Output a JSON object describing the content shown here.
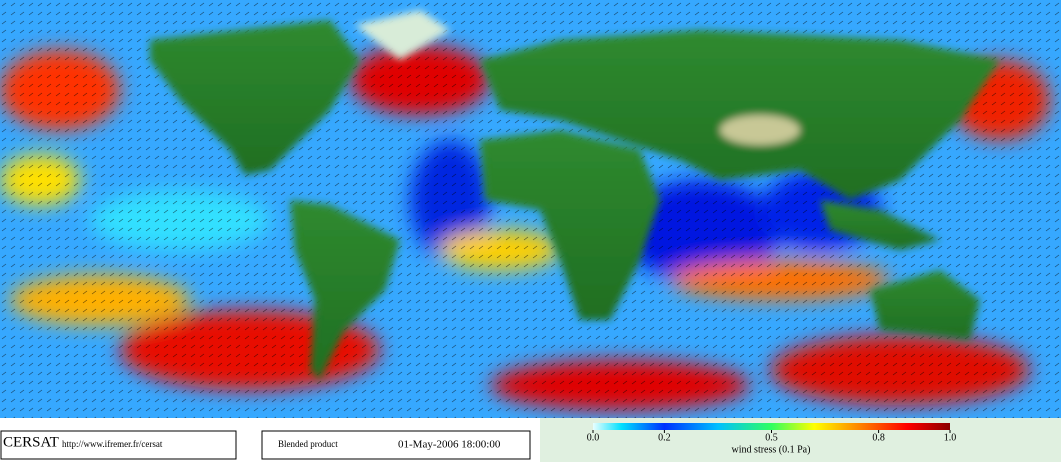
{
  "header": {
    "logo": "CERSAT",
    "url": "http://www.ifremer.fr/cersat"
  },
  "product": "Blended product",
  "timestamp": "01-May-2006 18:00:00",
  "colorbar": {
    "label": "wind stress (0.1 Pa)",
    "lim": [
      0,
      1
    ],
    "ticks": [
      {
        "value": 0,
        "label": "0.0"
      },
      0.2,
      0.5,
      0.8,
      {
        "value": 1,
        "label": "1.0"
      }
    ]
  }
}
